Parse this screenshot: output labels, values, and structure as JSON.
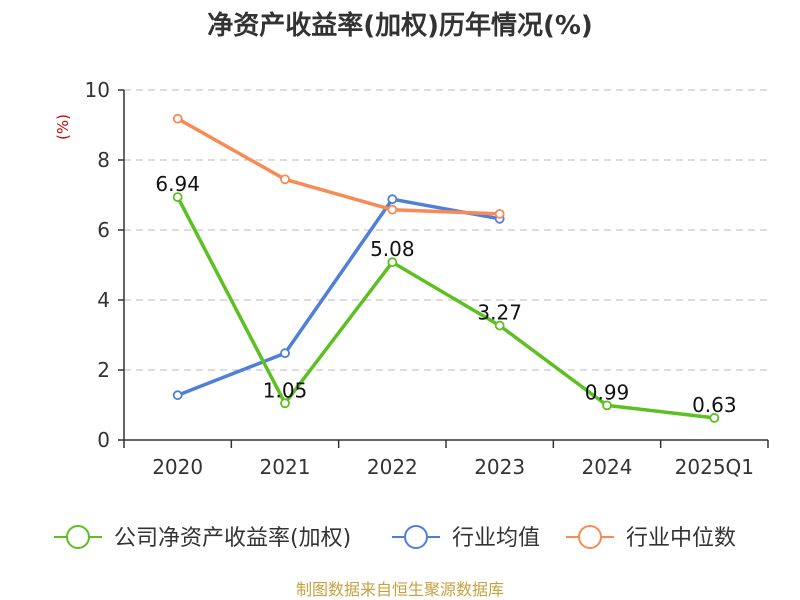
{
  "chart_data": {
    "type": "line",
    "title": "净资产收益率(加权)历年情况(%)",
    "ylabel": "(%)",
    "xlabel": "",
    "ylim": [
      0,
      10
    ],
    "yticks": [
      0,
      2,
      4,
      6,
      8,
      10
    ],
    "categories": [
      "2020",
      "2021",
      "2022",
      "2023",
      "2024",
      "2025Q1"
    ],
    "grid": true,
    "legend_position": "bottom",
    "series": [
      {
        "name": "公司净资产收益率(加权)",
        "color": "#5cc021",
        "values": [
          6.94,
          1.05,
          5.08,
          3.27,
          0.99,
          0.63
        ],
        "labels": [
          "6.94",
          "1.05",
          "5.08",
          "3.27",
          "0.99",
          "0.63"
        ]
      },
      {
        "name": "行业均值",
        "color": "#4f7fd8",
        "values": [
          1.28,
          2.48,
          6.88,
          6.32,
          null,
          null
        ]
      },
      {
        "name": "行业中位数",
        "color": "#f78a55",
        "values": [
          9.18,
          7.45,
          6.58,
          6.46,
          null,
          null
        ]
      }
    ],
    "source": "制图数据来自恒生聚源数据库"
  }
}
